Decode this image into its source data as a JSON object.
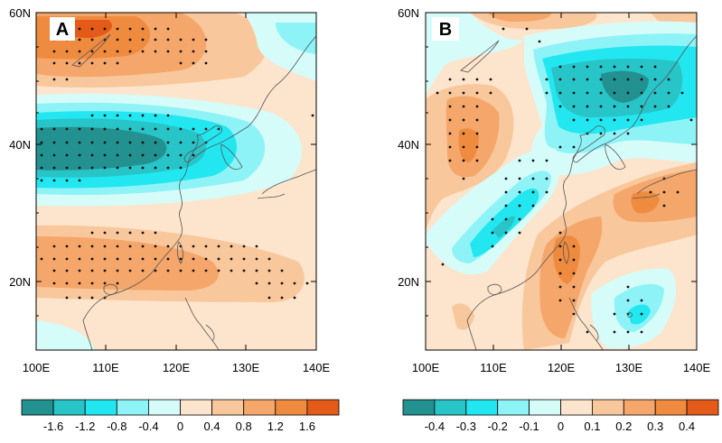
{
  "figure": {
    "panels": [
      {
        "label": "A",
        "lat_labels": [
          "60N",
          "40N",
          "20N"
        ],
        "lon_labels": [
          "100E",
          "110E",
          "120E",
          "130E",
          "140E"
        ],
        "colorbar": {
          "ticks": [
            "-1.6",
            "-1.2",
            "-0.8",
            "-0.4",
            "0",
            "0.4",
            "0.8",
            "1.2",
            "1.6"
          ],
          "colors": [
            "#22918f",
            "#27c4c8",
            "#22e7f0",
            "#8ef3f7",
            "#d6fcfa",
            "#fde4cc",
            "#f9c79c",
            "#f5a66a",
            "#ef8b3f",
            "#e45a18"
          ]
        }
      },
      {
        "label": "B",
        "lat_labels": [
          "60N",
          "40N",
          "20N"
        ],
        "lon_labels": [
          "100E",
          "110E",
          "120E",
          "130E",
          "140E"
        ],
        "colorbar": {
          "ticks": [
            "-0.4",
            "-0.3",
            "-0.2",
            "-0.1",
            "0",
            "0.1",
            "0.2",
            "0.3",
            "0.4"
          ],
          "colors": [
            "#22918f",
            "#27c4c8",
            "#22e7f0",
            "#8ef3f7",
            "#d6fcfa",
            "#fde4cc",
            "#f9c79c",
            "#f5a66a",
            "#ef8b3f",
            "#e45a18"
          ]
        }
      }
    ]
  }
}
